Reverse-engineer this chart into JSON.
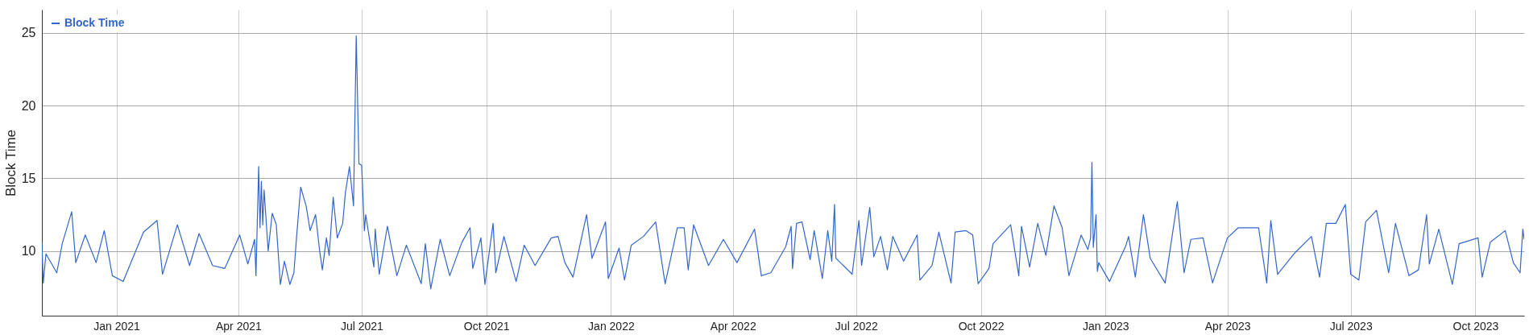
{
  "chart_data": {
    "type": "line",
    "ylabel": "Block Time",
    "xlim": [
      "2020-11-07",
      "2023-11-06"
    ],
    "ylim": [
      5.55,
      26.6
    ],
    "yticks": [
      10,
      15,
      20,
      25
    ],
    "xticks": [
      {
        "value": "2021-01-01",
        "label": "Jan 2021"
      },
      {
        "value": "2021-04-01",
        "label": "Apr 2021"
      },
      {
        "value": "2021-07-01",
        "label": "Jul 2021"
      },
      {
        "value": "2021-10-01",
        "label": "Oct 2021"
      },
      {
        "value": "2022-01-01",
        "label": "Jan 2022"
      },
      {
        "value": "2022-04-01",
        "label": "Apr 2022"
      },
      {
        "value": "2022-07-01",
        "label": "Jul 2022"
      },
      {
        "value": "2022-10-01",
        "label": "Oct 2022"
      },
      {
        "value": "2023-01-01",
        "label": "Jan 2023"
      },
      {
        "value": "2023-04-01",
        "label": "Apr 2023"
      },
      {
        "value": "2023-07-01",
        "label": "Jul 2023"
      },
      {
        "value": "2023-10-01",
        "label": "Oct 2023"
      }
    ],
    "grid": true,
    "legend": "top left",
    "line_style": "solid",
    "marker": "none",
    "series": [
      {
        "name": "Block Time",
        "color": "#3366cc",
        "x": [
          "2020-11-07",
          "2020-11-08",
          "2020-11-10",
          "2020-11-18",
          "2020-11-22",
          "2020-11-29",
          "2020-12-02",
          "2020-12-09",
          "2020-12-17",
          "2020-12-23",
          "2020-12-29",
          "2021-01-06",
          "2021-01-21",
          "2021-01-31",
          "2021-02-04",
          "2021-02-15",
          "2021-02-24",
          "2021-03-03",
          "2021-03-13",
          "2021-03-22",
          "2021-04-02",
          "2021-04-08",
          "2021-04-13",
          "2021-04-14",
          "2021-04-16",
          "2021-04-17",
          "2021-04-18",
          "2021-04-19",
          "2021-04-20",
          "2021-04-23",
          "2021-04-26",
          "2021-04-29",
          "2021-05-02",
          "2021-05-05",
          "2021-05-09",
          "2021-05-12",
          "2021-05-14",
          "2021-05-17",
          "2021-05-21",
          "2021-05-24",
          "2021-05-28",
          "2021-05-31",
          "2021-06-02",
          "2021-06-05",
          "2021-06-07",
          "2021-06-10",
          "2021-06-13",
          "2021-06-17",
          "2021-06-19",
          "2021-06-22",
          "2021-06-25",
          "2021-06-27",
          "2021-06-29",
          "2021-07-01",
          "2021-07-03",
          "2021-07-04",
          "2021-07-10",
          "2021-07-11",
          "2021-07-14",
          "2021-07-20",
          "2021-07-27",
          "2021-08-03",
          "2021-08-14",
          "2021-08-17",
          "2021-08-21",
          "2021-08-28",
          "2021-09-04",
          "2021-09-13",
          "2021-09-19",
          "2021-09-21",
          "2021-09-27",
          "2021-09-30",
          "2021-10-06",
          "2021-10-08",
          "2021-10-14",
          "2021-10-23",
          "2021-10-29",
          "2021-11-06",
          "2021-11-18",
          "2021-11-23",
          "2021-11-28",
          "2021-12-04",
          "2021-12-14",
          "2021-12-18",
          "2021-12-28",
          "2021-12-30",
          "2022-01-07",
          "2022-01-11",
          "2022-01-16",
          "2022-01-25",
          "2022-02-03",
          "2022-02-10",
          "2022-02-19",
          "2022-02-24",
          "2022-02-27",
          "2022-03-03",
          "2022-03-14",
          "2022-03-25",
          "2022-04-04",
          "2022-04-17",
          "2022-04-22",
          "2022-04-29",
          "2022-05-10",
          "2022-05-14",
          "2022-05-15",
          "2022-05-18",
          "2022-05-22",
          "2022-05-28",
          "2022-05-31",
          "2022-06-06",
          "2022-06-10",
          "2022-06-13",
          "2022-06-15",
          "2022-06-16",
          "2022-06-28",
          "2022-07-03",
          "2022-07-05",
          "2022-07-11",
          "2022-07-14",
          "2022-07-19",
          "2022-07-24",
          "2022-07-28",
          "2022-08-05",
          "2022-08-15",
          "2022-08-17",
          "2022-08-26",
          "2022-08-31",
          "2022-09-09",
          "2022-09-12",
          "2022-09-20",
          "2022-09-25",
          "2022-09-29",
          "2022-10-07",
          "2022-10-10",
          "2022-10-23",
          "2022-10-29",
          "2022-10-31",
          "2022-11-06",
          "2022-11-12",
          "2022-11-18",
          "2022-11-24",
          "2022-11-30",
          "2022-12-05",
          "2022-12-14",
          "2022-12-19",
          "2022-12-21",
          "2022-12-22",
          "2022-12-23",
          "2022-12-25",
          "2022-12-26",
          "2022-12-27",
          "2023-01-04",
          "2023-01-16",
          "2023-01-18",
          "2023-01-23",
          "2023-01-29",
          "2023-02-03",
          "2023-02-14",
          "2023-02-23",
          "2023-02-28",
          "2023-03-05",
          "2023-03-14",
          "2023-03-21",
          "2023-04-01",
          "2023-04-09",
          "2023-04-15",
          "2023-04-24",
          "2023-04-30",
          "2023-05-03",
          "2023-05-08",
          "2023-05-21",
          "2023-06-02",
          "2023-06-08",
          "2023-06-13",
          "2023-06-20",
          "2023-06-27",
          "2023-07-01",
          "2023-07-07",
          "2023-07-12",
          "2023-07-20",
          "2023-07-29",
          "2023-08-03",
          "2023-08-13",
          "2023-08-20",
          "2023-08-26",
          "2023-08-28",
          "2023-09-04",
          "2023-09-14",
          "2023-09-19",
          "2023-10-03",
          "2023-10-06",
          "2023-10-12",
          "2023-10-23",
          "2023-10-29",
          "2023-11-03",
          "2023-11-05",
          "2023-11-06"
        ],
        "values": [
          10.6,
          7.8,
          9.8,
          8.5,
          10.5,
          12.7,
          9.2,
          11.1,
          9.2,
          11.4,
          8.3,
          7.9,
          11.3,
          12.1,
          8.4,
          11.8,
          9.0,
          11.2,
          9.0,
          8.8,
          11.1,
          9.1,
          10.8,
          8.3,
          15.8,
          11.6,
          14.8,
          11.8,
          14.2,
          10.0,
          12.6,
          11.8,
          7.7,
          9.3,
          7.7,
          8.5,
          11.0,
          14.4,
          13.1,
          11.4,
          12.5,
          10.0,
          8.7,
          10.9,
          9.7,
          13.7,
          10.9,
          11.9,
          14.0,
          15.8,
          13.1,
          24.8,
          16.0,
          15.9,
          11.4,
          12.5,
          8.9,
          11.5,
          8.4,
          11.7,
          8.3,
          10.4,
          7.75,
          10.5,
          7.4,
          10.8,
          8.3,
          10.6,
          11.6,
          8.8,
          10.9,
          7.7,
          11.9,
          8.5,
          11.0,
          7.9,
          10.4,
          9.0,
          10.9,
          11.0,
          9.2,
          8.2,
          12.5,
          9.5,
          12.0,
          8.1,
          10.2,
          8.0,
          10.4,
          11.0,
          12.0,
          7.75,
          11.6,
          11.6,
          8.7,
          11.8,
          9.0,
          10.8,
          9.2,
          11.5,
          8.3,
          8.5,
          10.3,
          11.7,
          8.8,
          11.9,
          12.0,
          9.4,
          11.4,
          8.1,
          11.4,
          9.3,
          13.2,
          9.5,
          8.4,
          12.1,
          9.0,
          13.0,
          9.6,
          11.0,
          8.7,
          11.0,
          9.3,
          11.1,
          8.0,
          9.0,
          11.3,
          7.8,
          11.3,
          11.4,
          11.1,
          7.75,
          8.8,
          10.5,
          11.8,
          8.3,
          11.7,
          8.9,
          11.9,
          9.7,
          13.1,
          11.6,
          8.3,
          11.1,
          10.1,
          10.9,
          16.1,
          10.25,
          12.5,
          8.6,
          9.2,
          7.9,
          10.35,
          11.0,
          8.2,
          12.5,
          9.5,
          7.8,
          13.4,
          8.5,
          10.8,
          10.9,
          7.8,
          10.9,
          11.6,
          11.6,
          11.6,
          7.8,
          12.1,
          8.4,
          9.9,
          11.0,
          8.2,
          11.9,
          11.9,
          13.2,
          8.4,
          8.0,
          12.0,
          12.8,
          8.5,
          11.9,
          8.3,
          8.7,
          12.5,
          9.1,
          11.5,
          7.7,
          10.5,
          10.9,
          8.2,
          10.6,
          11.4,
          9.2,
          8.5,
          11.5,
          10.8
        ]
      }
    ]
  }
}
